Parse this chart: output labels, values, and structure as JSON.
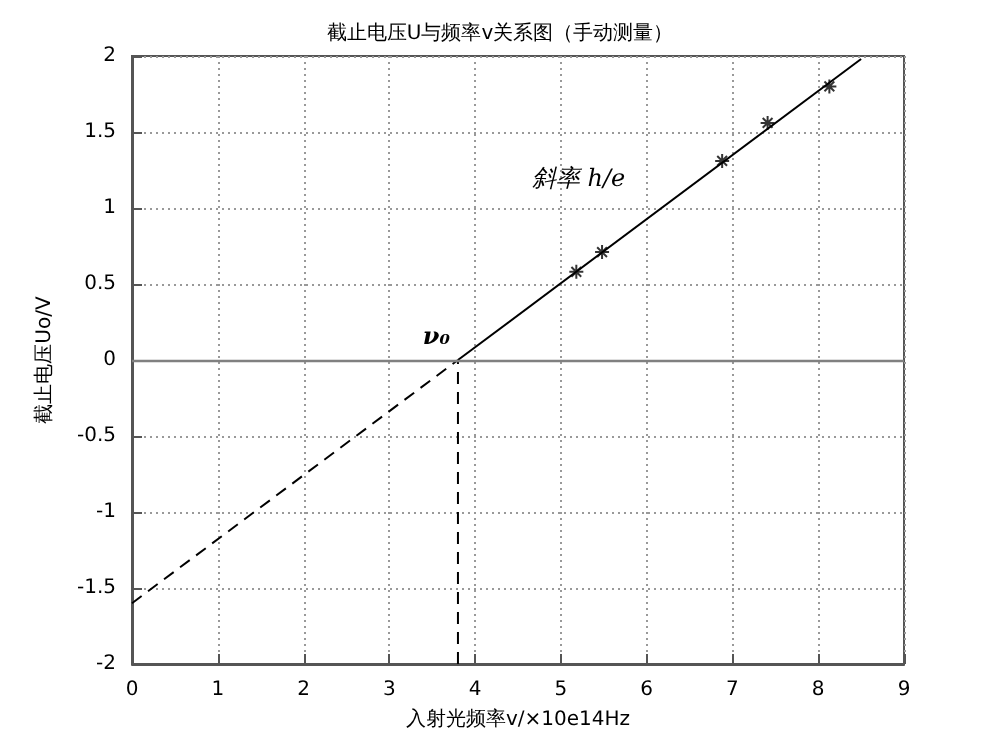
{
  "chart_data": {
    "type": "scatter",
    "title": "截止电压U与频率v关系图（手动测量）",
    "xlabel": "入射光频率v/×10e14Hz",
    "ylabel": "截止电压Uo/V",
    "xlim": [
      0,
      9
    ],
    "xticks": [
      0,
      1,
      2,
      3,
      4,
      5,
      6,
      7,
      8,
      9
    ],
    "ylim": [
      -2,
      2
    ],
    "yticks": [
      -2,
      -1.5,
      -1,
      -0.5,
      0,
      0.5,
      1,
      1.5,
      2
    ],
    "grid": true,
    "series": [
      {
        "x": [
          5.18,
          5.48,
          6.88,
          7.41,
          8.13
        ],
        "values": [
          0.58,
          0.71,
          1.31,
          1.56,
          1.8
        ],
        "color": "#000000",
        "marker": "cross"
      },
      {
        "type": "line",
        "x": [
          3.8,
          8.5
        ],
        "values": [
          0,
          1.98
        ],
        "color": "#000000",
        "line_style": "solid",
        "marker": "none"
      },
      {
        "type": "line",
        "x": [
          0,
          3.8
        ],
        "values": [
          -1.6,
          0
        ],
        "color": "#000000",
        "line_style": "dashed",
        "marker": "none"
      },
      {
        "type": "line",
        "x": [
          3.8,
          3.8
        ],
        "values": [
          -2,
          0
        ],
        "color": "#000000",
        "line_style": "dashed",
        "marker": "none"
      }
    ],
    "ref_lines": [
      {
        "axis": "y",
        "value": 0,
        "color": "#808080",
        "line_style": "solid"
      }
    ],
    "annotations": [
      {
        "text": "ν₀",
        "x": 3.8,
        "y": 0
      },
      "斜率 h/e"
    ]
  }
}
